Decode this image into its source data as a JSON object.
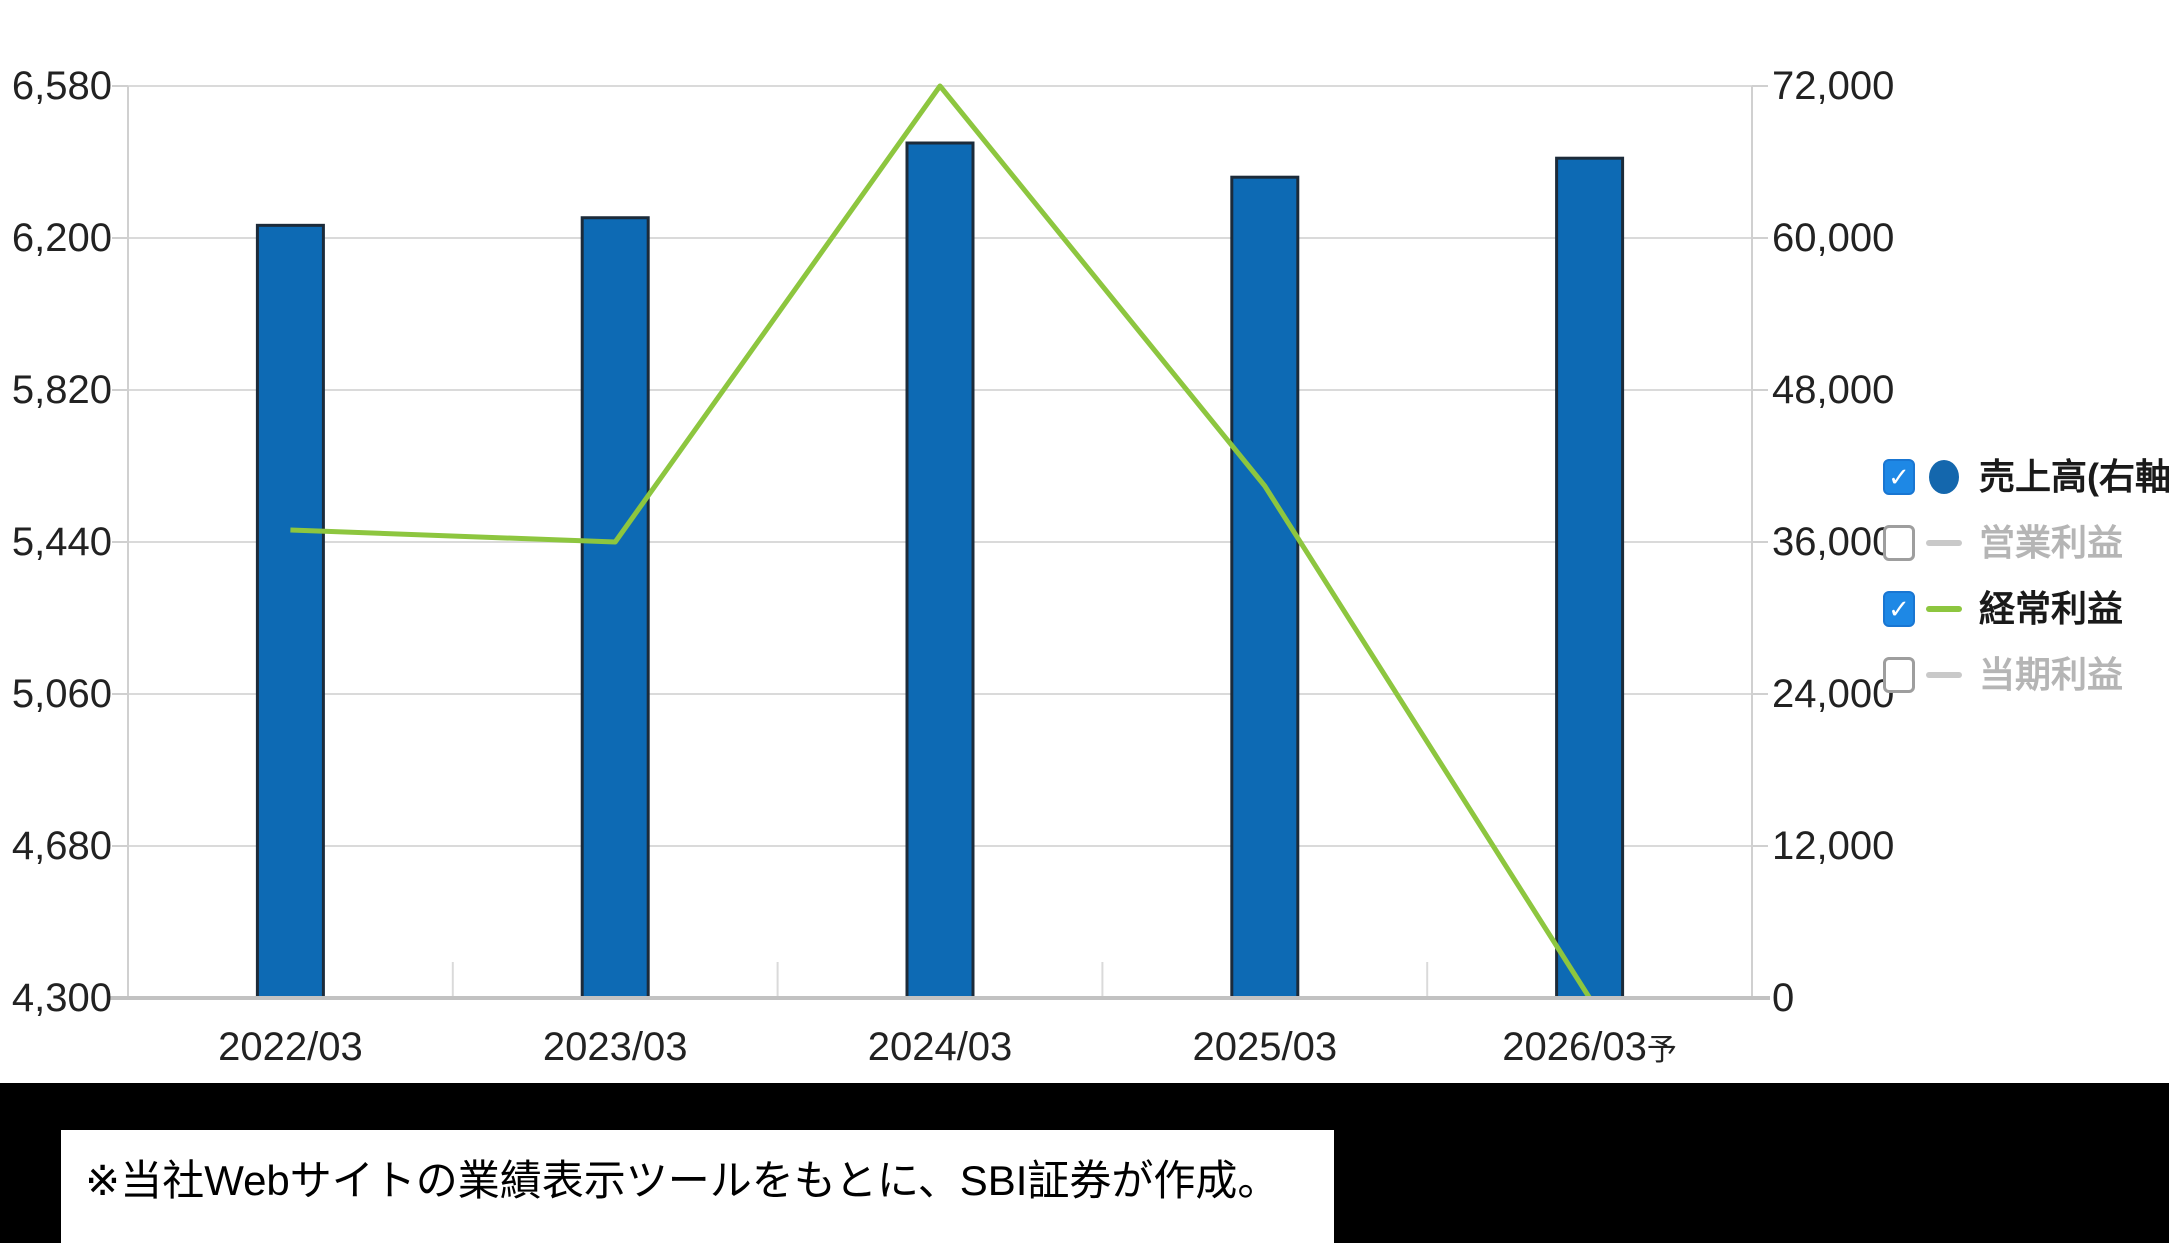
{
  "chart_data": {
    "type": "bar",
    "subtype": "combo-bar-line",
    "categories": [
      "2022/03",
      "2023/03",
      "2024/03",
      "2025/03",
      "2026/03予"
    ],
    "series": [
      {
        "name": "売上高(右軸)",
        "type": "bar",
        "axis": "right",
        "enabled": true,
        "color": "#0d6ab4",
        "border_color": "#1c2b3a",
        "values": [
          61000,
          61600,
          67500,
          64800,
          66300
        ]
      },
      {
        "name": "営業利益",
        "type": "line",
        "axis": "left",
        "enabled": false,
        "color": "#c9c9c9",
        "values": []
      },
      {
        "name": "経常利益",
        "type": "line",
        "axis": "left",
        "enabled": true,
        "color": "#8dc63f",
        "values": [
          5470,
          5440,
          6580,
          5580,
          4300
        ]
      },
      {
        "name": "当期利益",
        "type": "line",
        "axis": "left",
        "enabled": false,
        "color": "#c9c9c9",
        "values": []
      }
    ],
    "left_axis": {
      "min": 4300,
      "max": 6580,
      "ticks": [
        6580,
        6200,
        5820,
        5440,
        5060,
        4680,
        4300
      ]
    },
    "right_axis": {
      "min": 0,
      "max": 72000,
      "ticks": [
        72000,
        60000,
        48000,
        36000,
        24000,
        12000,
        0
      ]
    },
    "grid": true,
    "legend_position": "right",
    "title": "",
    "xlabel": "",
    "ylabel": ""
  },
  "x_labels": [
    {
      "text": "2022/03",
      "suffix": ""
    },
    {
      "text": "2023/03",
      "suffix": ""
    },
    {
      "text": "2024/03",
      "suffix": ""
    },
    {
      "text": "2025/03",
      "suffix": ""
    },
    {
      "text": "2026/03",
      "suffix": "予"
    }
  ],
  "legend": {
    "items": [
      {
        "label": "売上高(右軸)",
        "checked": true,
        "marker": "circle",
        "marker_color": "#1467ad",
        "text_color": "#1a1a1a"
      },
      {
        "label": "営業利益",
        "checked": false,
        "marker": "dash",
        "marker_color": "#c9c9c9",
        "text_color": "#b5b5b5"
      },
      {
        "label": "経常利益",
        "checked": true,
        "marker": "dash",
        "marker_color": "#8dc63f",
        "text_color": "#1a1a1a"
      },
      {
        "label": "当期利益",
        "checked": false,
        "marker": "dash",
        "marker_color": "#c9c9c9",
        "text_color": "#b5b5b5"
      }
    ]
  },
  "note": {
    "text": "※当社Webサイトの業績表示ツールをもとに、SBI証券が作成。"
  },
  "colors": {
    "bar_fill": "#0d6ab4",
    "bar_border": "#1c2b3a",
    "line_green": "#8dc63f",
    "checkbox_blue": "#1e88e5",
    "gridline": "#dadada",
    "axis_line": "#d0d0d0",
    "baseline": "#c2c2c2",
    "axis_text": "#222222",
    "legend_disabled_text": "#b5b5b5",
    "band_background": "#000000"
  }
}
